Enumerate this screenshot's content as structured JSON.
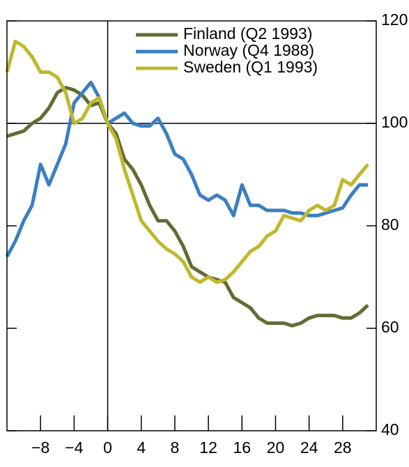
{
  "chart_data": {
    "type": "line",
    "x": [
      -12,
      -11,
      -10,
      -9,
      -8,
      -7,
      -6,
      -5,
      -4,
      -3,
      -2,
      -1,
      0,
      1,
      2,
      3,
      4,
      5,
      6,
      7,
      8,
      9,
      10,
      11,
      12,
      13,
      14,
      15,
      16,
      17,
      18,
      19,
      20,
      21,
      22,
      23,
      24,
      25,
      26,
      27,
      28,
      29,
      30,
      31
    ],
    "series": [
      {
        "name": "Finland (Q2 1993)",
        "color": "#636b35",
        "values": [
          97.5,
          98,
          98.5,
          100,
          101,
          103,
          106,
          107,
          106.5,
          105.5,
          103.5,
          104,
          100,
          98,
          93,
          91,
          88,
          84,
          81,
          81,
          79,
          76,
          72,
          71,
          70,
          69.5,
          69,
          66,
          65,
          64,
          62,
          61,
          61,
          61,
          60.5,
          61,
          62,
          62.5,
          62.5,
          62.5,
          62,
          62,
          63,
          64.5
        ]
      },
      {
        "name": "Norway (Q4 1988)",
        "color": "#3b7fc1",
        "values": [
          74,
          77,
          81,
          84,
          92,
          88,
          92,
          96,
          104,
          106,
          108,
          105,
          100,
          101,
          102,
          100,
          99.5,
          99.5,
          101,
          98,
          94,
          93,
          90,
          86,
          85,
          86,
          85,
          82,
          88,
          84,
          84,
          83,
          83,
          83,
          82.5,
          82.5,
          82,
          82,
          82.5,
          83,
          83.5,
          86,
          88,
          88
        ]
      },
      {
        "name": "Sweden (Q1 1993)",
        "color": "#c0b82c",
        "values": [
          110,
          116,
          115,
          113,
          110,
          110,
          109,
          106,
          100,
          101,
          104,
          105,
          100,
          97,
          91,
          86,
          81,
          79,
          77,
          75.5,
          74.5,
          73,
          70,
          69,
          70,
          69,
          69.5,
          71,
          73,
          75,
          76,
          78,
          79,
          82,
          81.5,
          81,
          83,
          84,
          83,
          84,
          89,
          88,
          90,
          92
        ]
      }
    ],
    "xlim": [
      -12,
      32
    ],
    "xticks": [
      {
        "value": -8,
        "label": "−8"
      },
      {
        "value": -4,
        "label": "−4"
      },
      0,
      4,
      8,
      12,
      16,
      20,
      24,
      28
    ],
    "ylim": [
      40,
      120
    ],
    "yticks": [
      40,
      60,
      80,
      100,
      120
    ],
    "hline": 100,
    "vline": 0,
    "legend": "upper right"
  }
}
